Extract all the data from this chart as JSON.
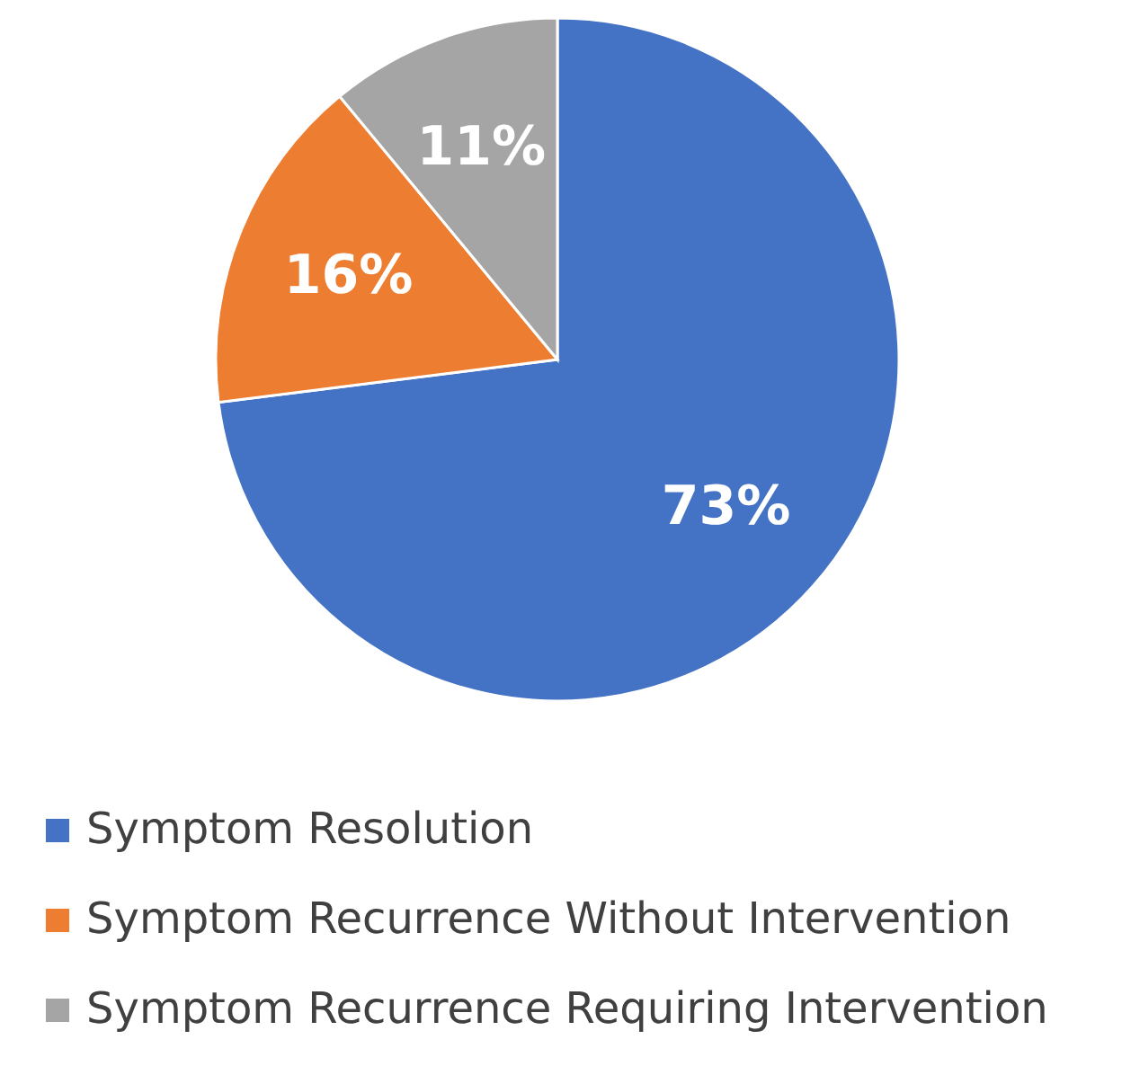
{
  "chart_data": {
    "type": "pie",
    "categories": [
      "Symptom Resolution",
      "Symptom Recurrence Without Intervention",
      "Symptom Recurrence Requiring Intervention"
    ],
    "values": [
      73,
      16,
      11
    ],
    "colors": [
      "#4472c4",
      "#ed7d31",
      "#a5a5a5"
    ],
    "value_labels": [
      "73%",
      "16%",
      "11%"
    ],
    "legend": "bottom"
  }
}
